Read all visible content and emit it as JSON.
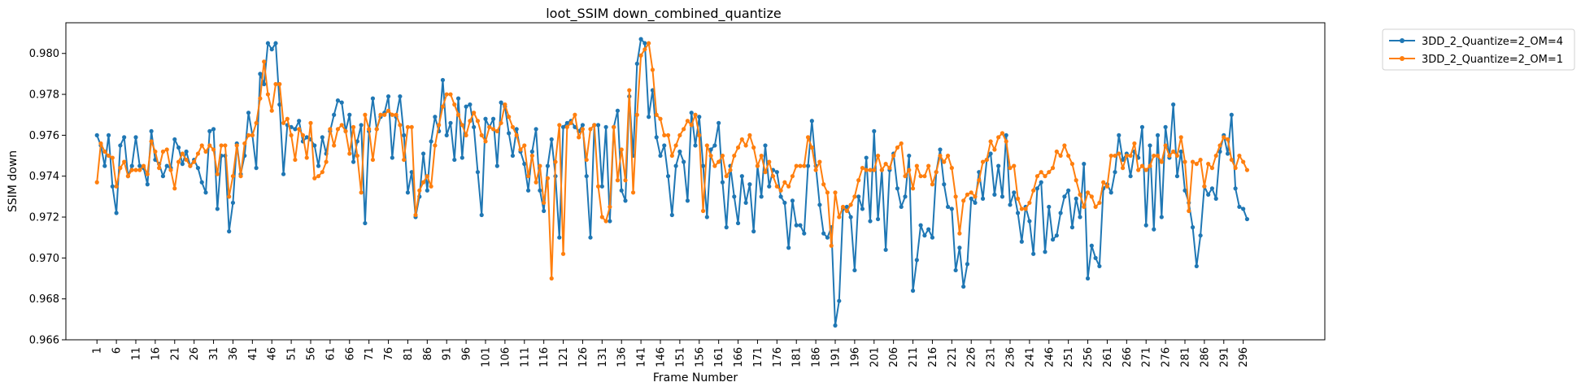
{
  "chart_data": {
    "type": "line",
    "title": "loot_SSIM down_combined_quantize",
    "xlabel": "Frame Number",
    "ylabel": "SSIM down",
    "xlim": [
      -7,
      317
    ],
    "ylim": [
      0.966,
      0.9815
    ],
    "yticks": [
      0.966,
      0.968,
      0.97,
      0.972,
      0.974,
      0.976,
      0.978,
      0.98
    ],
    "ytick_labels": [
      "0.966",
      "0.968",
      "0.970",
      "0.972",
      "0.974",
      "0.976",
      "0.978",
      "0.980"
    ],
    "xticks": [
      1,
      6,
      11,
      16,
      21,
      26,
      31,
      36,
      41,
      46,
      51,
      56,
      61,
      66,
      71,
      76,
      81,
      86,
      91,
      96,
      101,
      106,
      111,
      116,
      121,
      126,
      131,
      136,
      141,
      146,
      151,
      156,
      161,
      166,
      171,
      176,
      181,
      186,
      191,
      196,
      201,
      206,
      211,
      216,
      221,
      226,
      231,
      236,
      241,
      246,
      251,
      256,
      261,
      266,
      271,
      276,
      281,
      286,
      291,
      296
    ],
    "grid": false,
    "legend": "outside-top-right",
    "series": [
      {
        "name": "3DD_2_Quantize=2_OM=4",
        "color": "#1f77b4",
        "x_start": 1,
        "values": [
          0.976,
          0.9755,
          0.9745,
          0.976,
          0.9735,
          0.9722,
          0.9755,
          0.9759,
          0.974,
          0.9745,
          0.9759,
          0.9745,
          0.9744,
          0.9736,
          0.9762,
          0.9748,
          0.9746,
          0.974,
          0.9745,
          0.9744,
          0.9758,
          0.9754,
          0.9746,
          0.9752,
          0.9745,
          0.9748,
          0.9744,
          0.9737,
          0.9732,
          0.9762,
          0.9763,
          0.9724,
          0.975,
          0.975,
          0.9713,
          0.9727,
          0.9756,
          0.9741,
          0.975,
          0.9771,
          0.976,
          0.9744,
          0.979,
          0.9785,
          0.9805,
          0.9802,
          0.9805,
          0.9775,
          0.9741,
          0.9765,
          0.9764,
          0.9763,
          0.9767,
          0.9757,
          0.9759,
          0.9758,
          0.9755,
          0.9745,
          0.9759,
          0.9751,
          0.9762,
          0.977,
          0.9777,
          0.9776,
          0.9762,
          0.977,
          0.9747,
          0.9757,
          0.9765,
          0.9717,
          0.9762,
          0.9778,
          0.9763,
          0.9769,
          0.9771,
          0.9779,
          0.9749,
          0.9769,
          0.9779,
          0.976,
          0.9732,
          0.9742,
          0.972,
          0.973,
          0.9751,
          0.9733,
          0.9757,
          0.9769,
          0.9762,
          0.9787,
          0.976,
          0.9766,
          0.9748,
          0.9778,
          0.9749,
          0.9774,
          0.9775,
          0.9764,
          0.9742,
          0.9721,
          0.9768,
          0.9764,
          0.9768,
          0.9745,
          0.9776,
          0.9774,
          0.9761,
          0.975,
          0.9763,
          0.9752,
          0.9746,
          0.9733,
          0.9752,
          0.9763,
          0.9733,
          0.9723,
          0.9745,
          0.9758,
          0.974,
          0.971,
          0.9764,
          0.9766,
          0.9767,
          0.9764,
          0.9762,
          0.9765,
          0.974,
          0.971,
          0.9765,
          0.9765,
          0.9735,
          0.9764,
          0.9718,
          0.9764,
          0.9772,
          0.9733,
          0.9728,
          0.9779,
          0.975,
          0.9795,
          0.9807,
          0.9805,
          0.9769,
          0.9782,
          0.9759,
          0.975,
          0.9755,
          0.974,
          0.9721,
          0.9745,
          0.9752,
          0.9747,
          0.9728,
          0.9771,
          0.9755,
          0.9769,
          0.9745,
          0.972,
          0.9753,
          0.9755,
          0.9766,
          0.9737,
          0.9715,
          0.9745,
          0.973,
          0.9717,
          0.974,
          0.9727,
          0.9736,
          0.9713,
          0.9745,
          0.973,
          0.9755,
          0.9735,
          0.9743,
          0.9742,
          0.973,
          0.9727,
          0.9705,
          0.9728,
          0.9716,
          0.9716,
          0.9712,
          0.9745,
          0.9767,
          0.9745,
          0.9726,
          0.9712,
          0.971,
          0.9715,
          0.9667,
          0.9679,
          0.9724,
          0.9725,
          0.972,
          0.9694,
          0.973,
          0.9724,
          0.9749,
          0.9718,
          0.9762,
          0.9719,
          0.9743,
          0.9704,
          0.9743,
          0.9751,
          0.9734,
          0.9725,
          0.973,
          0.975,
          0.9684,
          0.9699,
          0.9716,
          0.9711,
          0.9714,
          0.971,
          0.9742,
          0.9753,
          0.9736,
          0.9725,
          0.9724,
          0.9694,
          0.9705,
          0.9686,
          0.9697,
          0.9729,
          0.9727,
          0.9742,
          0.9729,
          0.9748,
          0.9751,
          0.9731,
          0.9745,
          0.973,
          0.976,
          0.9726,
          0.9732,
          0.9722,
          0.9708,
          0.9725,
          0.9718,
          0.9702,
          0.9734,
          0.9737,
          0.9703,
          0.9725,
          0.9709,
          0.9711,
          0.9722,
          0.973,
          0.9733,
          0.9715,
          0.9729,
          0.972,
          0.9746,
          0.969,
          0.9706,
          0.97,
          0.9696,
          0.9734,
          0.9736,
          0.9732,
          0.9742,
          0.976,
          0.9748,
          0.9751,
          0.974,
          0.9752,
          0.9749,
          0.9764,
          0.9716,
          0.9755,
          0.9714,
          0.976,
          0.972,
          0.9764,
          0.9749,
          0.9775,
          0.974,
          0.9752,
          0.9733,
          0.9727,
          0.9715,
          0.9696,
          0.9711,
          0.9735,
          0.9731,
          0.9734,
          0.9729,
          0.9752,
          0.976,
          0.9751,
          0.977,
          0.9734,
          0.9725,
          0.9724,
          0.9719
        ]
      },
      {
        "name": "3DD_2_Quantize=2_OM=1",
        "color": "#ff7f0e",
        "x_start": 1,
        "values": [
          0.9737,
          0.9756,
          0.9752,
          0.975,
          0.9749,
          0.9735,
          0.9744,
          0.9747,
          0.974,
          0.9743,
          0.9743,
          0.9743,
          0.9745,
          0.9741,
          0.9757,
          0.9752,
          0.9744,
          0.9752,
          0.9753,
          0.9743,
          0.9734,
          0.9747,
          0.9751,
          0.9748,
          0.9745,
          0.9747,
          0.9751,
          0.9755,
          0.9752,
          0.9755,
          0.9753,
          0.9741,
          0.9755,
          0.9755,
          0.973,
          0.974,
          0.9755,
          0.974,
          0.9756,
          0.976,
          0.976,
          0.9766,
          0.9778,
          0.9796,
          0.978,
          0.9772,
          0.9785,
          0.9785,
          0.9766,
          0.9768,
          0.976,
          0.9748,
          0.9763,
          0.976,
          0.9749,
          0.9766,
          0.9739,
          0.974,
          0.9742,
          0.9747,
          0.9763,
          0.9755,
          0.9763,
          0.9765,
          0.9762,
          0.9751,
          0.9764,
          0.975,
          0.9732,
          0.977,
          0.9763,
          0.9748,
          0.9763,
          0.977,
          0.977,
          0.9772,
          0.977,
          0.977,
          0.9765,
          0.9748,
          0.9764,
          0.9764,
          0.9721,
          0.9733,
          0.9737,
          0.974,
          0.9735,
          0.9755,
          0.9765,
          0.9774,
          0.978,
          0.978,
          0.9775,
          0.977,
          0.9765,
          0.976,
          0.9767,
          0.9771,
          0.9767,
          0.976,
          0.9757,
          0.9764,
          0.9763,
          0.9762,
          0.9766,
          0.9775,
          0.9769,
          0.9764,
          0.976,
          0.9753,
          0.9755,
          0.974,
          0.975,
          0.9737,
          0.9745,
          0.9727,
          0.9739,
          0.969,
          0.9747,
          0.9765,
          0.9702,
          0.9764,
          0.9766,
          0.977,
          0.9759,
          0.9763,
          0.9748,
          0.9763,
          0.9765,
          0.9735,
          0.972,
          0.9718,
          0.9725,
          0.9764,
          0.9738,
          0.9753,
          0.9738,
          0.9782,
          0.9732,
          0.977,
          0.9799,
          0.9802,
          0.9805,
          0.9792,
          0.977,
          0.9768,
          0.976,
          0.976,
          0.975,
          0.9755,
          0.976,
          0.9763,
          0.9767,
          0.9765,
          0.977,
          0.976,
          0.9723,
          0.9755,
          0.975,
          0.9745,
          0.9747,
          0.975,
          0.974,
          0.9743,
          0.975,
          0.9754,
          0.9758,
          0.9755,
          0.976,
          0.9754,
          0.9745,
          0.975,
          0.9742,
          0.9747,
          0.974,
          0.9735,
          0.9733,
          0.9737,
          0.9735,
          0.974,
          0.9745,
          0.9745,
          0.9745,
          0.9759,
          0.9754,
          0.9743,
          0.9747,
          0.9736,
          0.9732,
          0.9706,
          0.9732,
          0.972,
          0.9725,
          0.9723,
          0.9726,
          0.973,
          0.9738,
          0.9744,
          0.9743,
          0.9743,
          0.9743,
          0.975,
          0.9743,
          0.9746,
          0.9744,
          0.975,
          0.9754,
          0.9756,
          0.974,
          0.9743,
          0.9734,
          0.9745,
          0.974,
          0.974,
          0.9745,
          0.9736,
          0.9742,
          0.975,
          0.9747,
          0.975,
          0.9744,
          0.973,
          0.9712,
          0.9728,
          0.9731,
          0.9732,
          0.973,
          0.9738,
          0.9747,
          0.9748,
          0.9757,
          0.9753,
          0.9759,
          0.9761,
          0.9757,
          0.9744,
          0.9745,
          0.9729,
          0.9724,
          0.9724,
          0.9727,
          0.9733,
          0.974,
          0.9742,
          0.974,
          0.9742,
          0.9744,
          0.9752,
          0.975,
          0.9755,
          0.975,
          0.9746,
          0.9738,
          0.9731,
          0.9725,
          0.9732,
          0.973,
          0.9725,
          0.9727,
          0.9737,
          0.9735,
          0.975,
          0.975,
          0.9751,
          0.9744,
          0.975,
          0.975,
          0.9756,
          0.9743,
          0.9745,
          0.9743,
          0.9745,
          0.975,
          0.975,
          0.9747,
          0.9755,
          0.975,
          0.9752,
          0.975,
          0.9759,
          0.9747,
          0.9723,
          0.9747,
          0.9746,
          0.9748,
          0.9735,
          0.9746,
          0.9744,
          0.975,
          0.9755,
          0.9759,
          0.9758,
          0.9748,
          0.9744,
          0.975,
          0.9747,
          0.9743
        ]
      }
    ]
  }
}
